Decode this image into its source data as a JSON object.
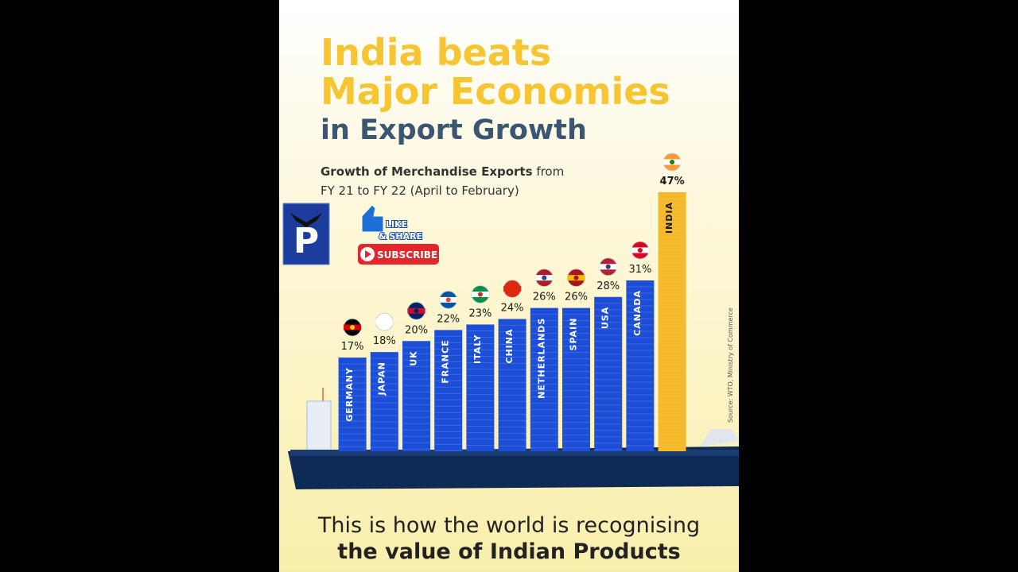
{
  "chart_data": {
    "type": "bar",
    "title": [
      "India beats",
      "Major Economies",
      "in Export Growth"
    ],
    "subtitle": {
      "bold": "Growth of Merchandise Exports",
      "rest": "from",
      "line2": "FY 21 to FY 22 (April to February)"
    },
    "categories": [
      "GERMANY",
      "JAPAN",
      "UK",
      "FRANCE",
      "ITALY",
      "CHINA",
      "NETHERLANDS",
      "SPAIN",
      "USA",
      "CANADA",
      "INDIA"
    ],
    "values": [
      17,
      18,
      20,
      22,
      23,
      24,
      26,
      26,
      28,
      31,
      47
    ],
    "value_labels": [
      "17%",
      "18%",
      "20%",
      "22%",
      "23%",
      "24%",
      "26%",
      "26%",
      "28%",
      "31%",
      "47%"
    ],
    "colors": [
      "#1d4ed8",
      "#1d4ed8",
      "#1d4ed8",
      "#1d4ed8",
      "#1d4ed8",
      "#1d4ed8",
      "#1d4ed8",
      "#1d4ed8",
      "#1d4ed8",
      "#1d4ed8",
      "#f4b829"
    ],
    "source": "Source: WTO, Ministry of Commerce",
    "footer": [
      "This is how the world is recognising",
      "the value of Indian Products"
    ]
  },
  "overlay": {
    "like": "LIKE",
    "share": "& SHARE",
    "subscribe": "SUBSCRIBE"
  }
}
